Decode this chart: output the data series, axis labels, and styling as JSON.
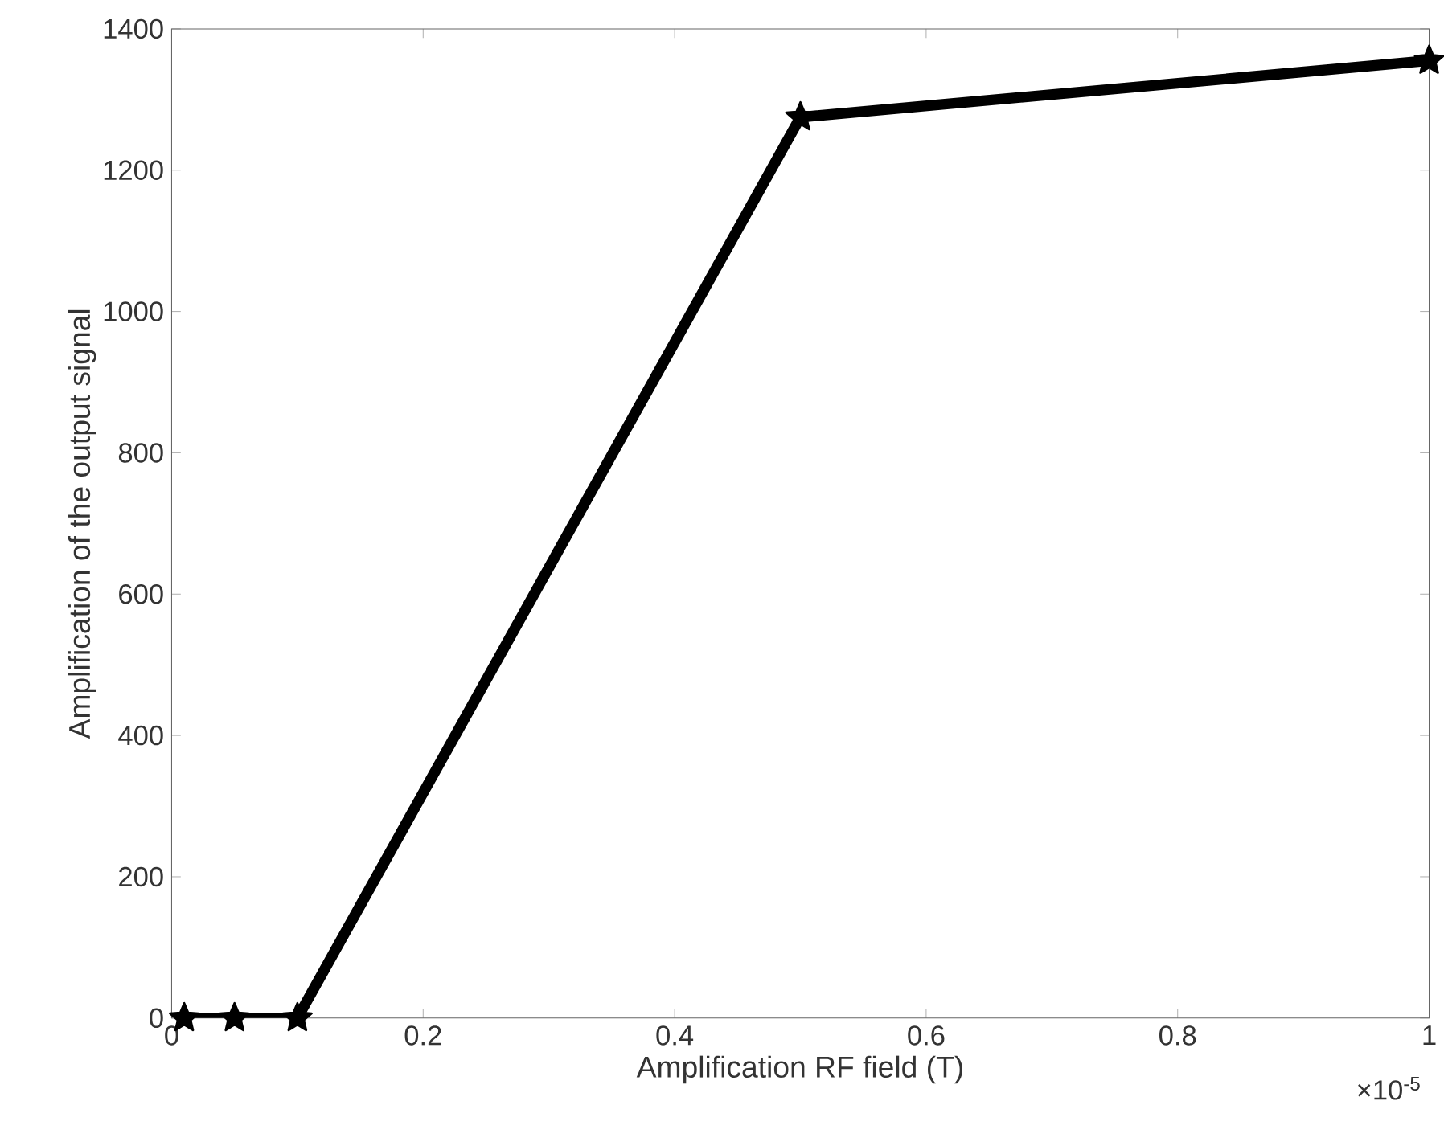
{
  "chart_data": {
    "type": "line",
    "xlabel": "Amplification RF field (T)",
    "ylabel": "Amplification of the output signal",
    "x": [
      0.01,
      0.05,
      0.1,
      0.5,
      1
    ],
    "series": [
      {
        "color": "#000000",
        "values": [
          0,
          0,
          0,
          1275,
          1355
        ]
      }
    ],
    "marker": "star",
    "line_style": "solid",
    "xlim": [
      0,
      1
    ],
    "xticks": [
      0,
      0.2,
      0.4,
      0.6,
      0.8,
      1
    ],
    "ylim": [
      0,
      1400
    ],
    "yticks": [
      0,
      200,
      400,
      600,
      800,
      1000,
      1200,
      1400
    ],
    "annotations": [
      "×10$^{-5}$"
    ]
  }
}
